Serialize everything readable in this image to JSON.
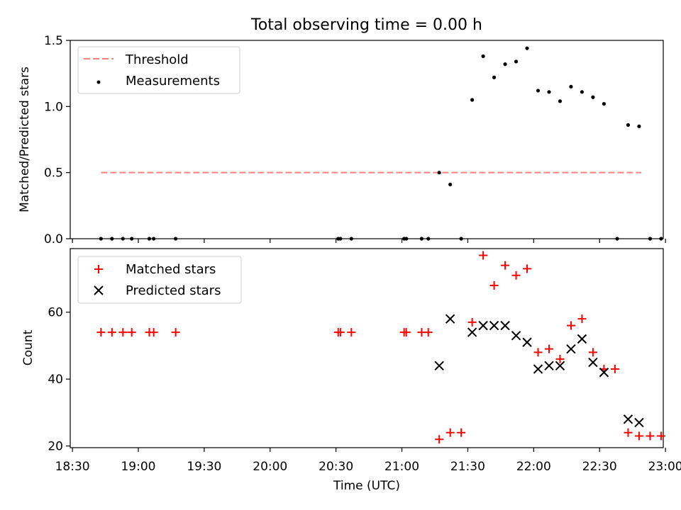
{
  "figure": {
    "title": "Total observing time = 0.00 h",
    "xlabel": "Time (UTC)",
    "xticks": [
      "18:30",
      "19:00",
      "19:30",
      "20:00",
      "20:30",
      "21:00",
      "21:30",
      "22:00",
      "22:30",
      "23:00"
    ]
  },
  "chart_data": [
    {
      "type": "scatter",
      "panel": "top",
      "ylabel": "Matched/Predicted stars",
      "ylim": [
        0,
        1.5
      ],
      "yticks": [
        "0.0",
        "0.5",
        "1.0",
        "1.5"
      ],
      "xlim": [
        "18:29",
        "22:59"
      ],
      "grid": false,
      "legend_position": "top-left",
      "series": [
        {
          "name": "Threshold",
          "type": "line",
          "style": "dashed",
          "color": "#ff7f7f",
          "x": [
            "18:43",
            "22:49"
          ],
          "y": [
            0.5,
            0.5
          ]
        },
        {
          "name": "Measurements",
          "type": "scatter",
          "marker": "dot",
          "color": "#000000",
          "x": [
            "18:43",
            "18:48",
            "18:53",
            "18:57",
            "19:05",
            "19:07",
            "19:17",
            "20:31",
            "20:32",
            "20:37",
            "21:01",
            "21:02",
            "21:09",
            "21:12",
            "21:17",
            "21:22",
            "21:27",
            "21:32",
            "21:37",
            "21:42",
            "21:47",
            "21:52",
            "21:57",
            "22:02",
            "22:07",
            "22:12",
            "22:17",
            "22:22",
            "22:27",
            "22:32",
            "22:38",
            "22:43",
            "22:48",
            "22:53",
            "22:58"
          ],
          "y": [
            0,
            0,
            0,
            0,
            0,
            0,
            0,
            0,
            0,
            0,
            0,
            0,
            0,
            0,
            0.5,
            0.41,
            0,
            1.05,
            1.38,
            1.22,
            1.32,
            1.34,
            1.44,
            1.12,
            1.11,
            1.04,
            1.15,
            1.11,
            1.07,
            1.02,
            0,
            0.86,
            0.85,
            0,
            0
          ]
        }
      ]
    },
    {
      "type": "scatter",
      "panel": "bottom",
      "ylabel": "Count",
      "ylim": [
        19.5,
        79
      ],
      "yticks": [
        "20",
        "40",
        "60"
      ],
      "xlim": [
        "18:29",
        "22:59"
      ],
      "grid": false,
      "legend_position": "top-left",
      "series": [
        {
          "name": "Matched stars",
          "marker": "plus",
          "color": "#ff0000",
          "x": [
            "18:43",
            "18:48",
            "18:53",
            "18:57",
            "19:05",
            "19:07",
            "19:17",
            "20:31",
            "20:32",
            "20:37",
            "21:01",
            "21:02",
            "21:09",
            "21:12",
            "21:17",
            "21:22",
            "21:27",
            "21:32",
            "21:37",
            "21:42",
            "21:47",
            "21:52",
            "21:57",
            "22:02",
            "22:07",
            "22:12",
            "22:17",
            "22:22",
            "22:27",
            "22:32",
            "22:37",
            "22:43",
            "22:48",
            "22:53",
            "22:58"
          ],
          "y": [
            54,
            54,
            54,
            54,
            54,
            54,
            54,
            54,
            54,
            54,
            54,
            54,
            54,
            54,
            22,
            24,
            24,
            57,
            77,
            68,
            74,
            71,
            73,
            48,
            49,
            46,
            56,
            58,
            48,
            43,
            43,
            24,
            23,
            23,
            23
          ]
        },
        {
          "name": "Predicted stars",
          "marker": "x",
          "color": "#000000",
          "x": [
            "21:17",
            "21:22",
            "21:32",
            "21:37",
            "21:42",
            "21:47",
            "21:52",
            "21:57",
            "22:02",
            "22:07",
            "22:12",
            "22:17",
            "22:22",
            "22:27",
            "22:32",
            "22:43",
            "22:48"
          ],
          "y": [
            44,
            58,
            54,
            56,
            56,
            56,
            53,
            51,
            43,
            44,
            44,
            49,
            52,
            45,
            42,
            28,
            27
          ]
        }
      ]
    }
  ]
}
